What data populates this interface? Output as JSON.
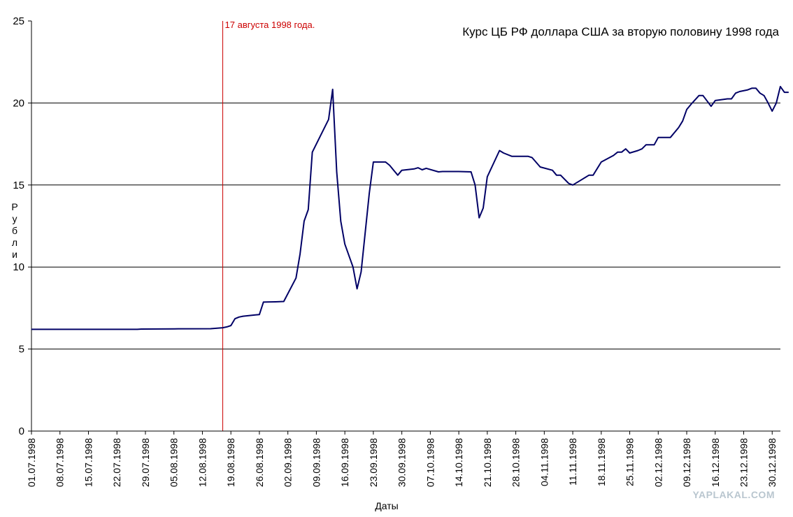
{
  "chart_data": {
    "type": "line",
    "title": "Курс ЦБ РФ доллара США за вторую половину 1998 года",
    "xlabel": "Даты",
    "ylabel": "Рубли",
    "ylim": [
      0,
      25
    ],
    "xlim": [
      "1998-07-01",
      "1998-12-31"
    ],
    "yticks": [
      0,
      5,
      10,
      15,
      20,
      25
    ],
    "xtick_labels": [
      "01.07.1998",
      "08.07.1998",
      "15.07.1998",
      "22.07.1998",
      "29.07.1998",
      "05.08.1998",
      "12.08.1998",
      "19.08.1998",
      "26.08.1998",
      "02.09.1998",
      "09.09.1998",
      "16.09.1998",
      "23.09.1998",
      "30.09.1998",
      "07.10.1998",
      "14.10.1998",
      "21.10.1998",
      "28.10.1998",
      "04.11.1998",
      "11.11.1998",
      "18.11.1998",
      "25.11.1998",
      "02.12.1998",
      "09.12.1998",
      "16.12.1998",
      "23.12.1998",
      "30.12.1998"
    ],
    "grid": "horizontal",
    "line_color": "#000066",
    "annotation": {
      "label": "17 августа 1998 года.",
      "x": "1998-08-17",
      "color": "#cc0000"
    },
    "series": [
      {
        "points": [
          [
            "1998-07-01",
            6.2
          ],
          [
            "1998-07-10",
            6.2
          ],
          [
            "1998-07-20",
            6.2
          ],
          [
            "1998-07-27",
            6.2
          ],
          [
            "1998-07-28",
            6.22
          ],
          [
            "1998-08-05",
            6.23
          ],
          [
            "1998-08-14",
            6.24
          ],
          [
            "1998-08-17",
            6.3
          ],
          [
            "1998-08-18",
            6.35
          ],
          [
            "1998-08-19",
            6.43
          ],
          [
            "1998-08-20",
            6.85
          ],
          [
            "1998-08-21",
            6.95
          ],
          [
            "1998-08-22",
            7.0
          ],
          [
            "1998-08-25",
            7.08
          ],
          [
            "1998-08-26",
            7.1
          ],
          [
            "1998-08-27",
            7.86
          ],
          [
            "1998-08-30",
            7.88
          ],
          [
            "1998-09-01",
            7.9
          ],
          [
            "1998-09-04",
            9.33
          ],
          [
            "1998-09-05",
            10.8
          ],
          [
            "1998-09-06",
            12.8
          ],
          [
            "1998-09-07",
            13.5
          ],
          [
            "1998-09-08",
            17.0
          ],
          [
            "1998-09-10",
            18.0
          ],
          [
            "1998-09-12",
            19.0
          ],
          [
            "1998-09-13",
            20.83
          ],
          [
            "1998-09-14",
            15.8
          ],
          [
            "1998-09-15",
            12.8
          ],
          [
            "1998-09-16",
            11.4
          ],
          [
            "1998-09-18",
            10.0
          ],
          [
            "1998-09-19",
            8.67
          ],
          [
            "1998-09-20",
            9.7
          ],
          [
            "1998-09-22",
            14.5
          ],
          [
            "1998-09-23",
            16.4
          ],
          [
            "1998-09-26",
            16.4
          ],
          [
            "1998-09-27",
            16.2
          ],
          [
            "1998-09-28",
            15.9
          ],
          [
            "1998-09-29",
            15.6
          ],
          [
            "1998-09-30",
            15.9
          ],
          [
            "1998-10-03",
            15.98
          ],
          [
            "1998-10-04",
            16.05
          ],
          [
            "1998-10-05",
            15.93
          ],
          [
            "1998-10-06",
            16.02
          ],
          [
            "1998-10-09",
            15.8
          ],
          [
            "1998-10-10",
            15.82
          ],
          [
            "1998-10-14",
            15.82
          ],
          [
            "1998-10-17",
            15.8
          ],
          [
            "1998-10-18",
            15.0
          ],
          [
            "1998-10-19",
            13.0
          ],
          [
            "1998-10-20",
            13.6
          ],
          [
            "1998-10-21",
            15.5
          ],
          [
            "1998-10-24",
            17.1
          ],
          [
            "1998-10-25",
            16.95
          ],
          [
            "1998-10-27",
            16.75
          ],
          [
            "1998-10-31",
            16.75
          ],
          [
            "1998-11-01",
            16.67
          ],
          [
            "1998-11-03",
            16.1
          ],
          [
            "1998-11-06",
            15.9
          ],
          [
            "1998-11-07",
            15.6
          ],
          [
            "1998-11-08",
            15.6
          ],
          [
            "1998-11-10",
            15.1
          ],
          [
            "1998-11-11",
            15.0
          ],
          [
            "1998-11-13",
            15.3
          ],
          [
            "1998-11-15",
            15.6
          ],
          [
            "1998-11-16",
            15.6
          ],
          [
            "1998-11-18",
            16.4
          ],
          [
            "1998-11-21",
            16.8
          ],
          [
            "1998-11-22",
            17.0
          ],
          [
            "1998-11-23",
            17.0
          ],
          [
            "1998-11-24",
            17.2
          ],
          [
            "1998-11-25",
            16.95
          ],
          [
            "1998-11-27",
            17.1
          ],
          [
            "1998-11-28",
            17.2
          ],
          [
            "1998-11-29",
            17.45
          ],
          [
            "1998-12-01",
            17.45
          ],
          [
            "1998-12-02",
            17.9
          ],
          [
            "1998-12-05",
            17.9
          ],
          [
            "1998-12-07",
            18.5
          ],
          [
            "1998-12-08",
            18.9
          ],
          [
            "1998-12-09",
            19.6
          ],
          [
            "1998-12-10",
            19.9
          ],
          [
            "1998-12-12",
            20.45
          ],
          [
            "1998-12-13",
            20.45
          ],
          [
            "1998-12-15",
            19.8
          ],
          [
            "1998-12-16",
            20.15
          ],
          [
            "1998-12-19",
            20.25
          ],
          [
            "1998-12-20",
            20.25
          ],
          [
            "1998-12-21",
            20.6
          ],
          [
            "1998-12-22",
            20.7
          ],
          [
            "1998-12-24",
            20.8
          ],
          [
            "1998-12-25",
            20.9
          ],
          [
            "1998-12-26",
            20.9
          ],
          [
            "1998-12-27",
            20.6
          ],
          [
            "1998-12-28",
            20.45
          ],
          [
            "1998-12-29",
            20.0
          ],
          [
            "1998-12-30",
            19.5
          ],
          [
            "1998-12-31",
            20.0
          ],
          [
            "1999-01-01",
            21.0
          ],
          [
            "1999-01-02",
            20.65
          ],
          [
            "1999-01-03",
            20.65
          ]
        ]
      }
    ]
  },
  "watermark": "YAPLAKAL.COM"
}
